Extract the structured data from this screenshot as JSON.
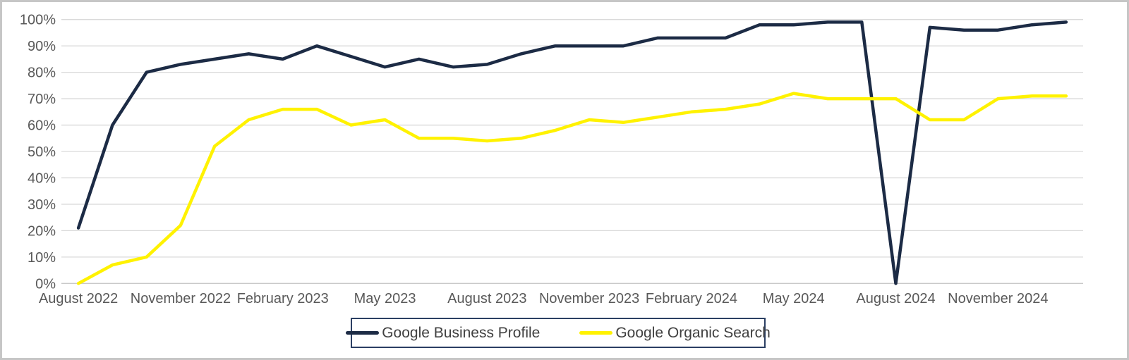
{
  "chart_data": {
    "type": "line",
    "title": "",
    "xlabel": "",
    "ylabel": "",
    "ylim": [
      0,
      100
    ],
    "y_ticks": [
      0,
      10,
      20,
      30,
      40,
      50,
      60,
      70,
      80,
      90,
      100
    ],
    "y_tick_suffix": "%",
    "grid": true,
    "legend_position": "bottom",
    "x": [
      "August 2022",
      "September 2022",
      "October 2022",
      "November 2022",
      "December 2022",
      "January 2023",
      "February 2023",
      "March 2023",
      "April 2023",
      "May 2023",
      "June 2023",
      "July 2023",
      "August 2023",
      "September 2023",
      "October 2023",
      "November 2023",
      "December 2023",
      "January 2024",
      "February 2024",
      "March 2024",
      "April 2024",
      "May 2024",
      "June 2024",
      "July 2024",
      "August 2024",
      "September 2024",
      "October 2024",
      "November 2024",
      "December 2024",
      "January 2025"
    ],
    "x_tick_indices": [
      0,
      3,
      6,
      9,
      12,
      15,
      18,
      21,
      24,
      27
    ],
    "series": [
      {
        "name": "Google Business Profile",
        "color": "#1c2b45",
        "values": [
          21,
          60,
          80,
          83,
          85,
          87,
          85,
          90,
          86,
          82,
          85,
          82,
          83,
          87,
          90,
          90,
          90,
          93,
          93,
          93,
          98,
          98,
          99,
          99,
          0,
          97,
          96,
          96,
          98,
          99
        ]
      },
      {
        "name": "Google Organic Search",
        "color": "#fff200",
        "values": [
          0,
          7,
          10,
          22,
          52,
          62,
          66,
          66,
          60,
          62,
          55,
          55,
          54,
          55,
          58,
          62,
          61,
          63,
          65,
          66,
          68,
          72,
          70,
          70,
          70,
          62,
          62,
          70,
          71,
          71
        ]
      }
    ]
  },
  "colors": {
    "gridline": "#d9d9d9",
    "axis_line": "#c9c9c9",
    "tick_text": "#595959",
    "legend_text": "#404040",
    "legend_border": "#2b3f63",
    "frame_border": "#c6c6c6",
    "background": "#ffffff"
  }
}
